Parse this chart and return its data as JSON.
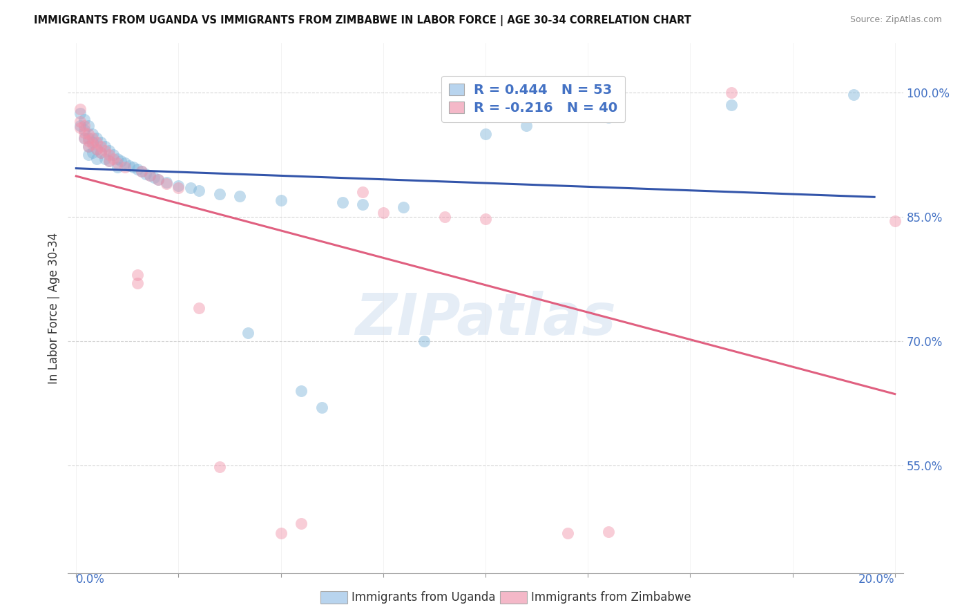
{
  "title": "IMMIGRANTS FROM UGANDA VS IMMIGRANTS FROM ZIMBABWE IN LABOR FORCE | AGE 30-34 CORRELATION CHART",
  "source": "Source: ZipAtlas.com",
  "ylabel": "In Labor Force | Age 30-34",
  "ylim": [
    0.42,
    1.06
  ],
  "xlim": [
    -0.002,
    0.202
  ],
  "y_ticks": [
    0.55,
    0.7,
    0.85,
    1.0
  ],
  "y_tick_labels": [
    "55.0%",
    "70.0%",
    "85.0%",
    "100.0%"
  ],
  "uganda_color": "#7ab3d9",
  "zimbabwe_color": "#f090a8",
  "uganda_line_color": "#3355aa",
  "zimbabwe_line_color": "#e06080",
  "uganda_legend_color": "#b8d4ee",
  "zimbabwe_legend_color": "#f4b8c8",
  "legend_R_uganda": "R = 0.444",
  "legend_N_uganda": "N = 53",
  "legend_R_zimbabwe": "R = -0.216",
  "legend_N_zimbabwe": "N = 40",
  "watermark_text": "ZIPatlas",
  "uganda_points": [
    [
      0.001,
      0.975
    ],
    [
      0.001,
      0.96
    ],
    [
      0.002,
      0.968
    ],
    [
      0.002,
      0.955
    ],
    [
      0.002,
      0.945
    ],
    [
      0.003,
      0.96
    ],
    [
      0.003,
      0.945
    ],
    [
      0.003,
      0.935
    ],
    [
      0.003,
      0.925
    ],
    [
      0.004,
      0.95
    ],
    [
      0.004,
      0.94
    ],
    [
      0.004,
      0.928
    ],
    [
      0.005,
      0.945
    ],
    [
      0.005,
      0.932
    ],
    [
      0.005,
      0.92
    ],
    [
      0.006,
      0.94
    ],
    [
      0.006,
      0.928
    ],
    [
      0.007,
      0.935
    ],
    [
      0.007,
      0.92
    ],
    [
      0.008,
      0.93
    ],
    [
      0.008,
      0.918
    ],
    [
      0.009,
      0.925
    ],
    [
      0.01,
      0.92
    ],
    [
      0.01,
      0.91
    ],
    [
      0.011,
      0.918
    ],
    [
      0.012,
      0.915
    ],
    [
      0.013,
      0.912
    ],
    [
      0.014,
      0.91
    ],
    [
      0.015,
      0.908
    ],
    [
      0.016,
      0.905
    ],
    [
      0.017,
      0.902
    ],
    [
      0.018,
      0.9
    ],
    [
      0.019,
      0.898
    ],
    [
      0.02,
      0.895
    ],
    [
      0.022,
      0.892
    ],
    [
      0.025,
      0.888
    ],
    [
      0.028,
      0.885
    ],
    [
      0.03,
      0.882
    ],
    [
      0.035,
      0.878
    ],
    [
      0.04,
      0.875
    ],
    [
      0.042,
      0.71
    ],
    [
      0.05,
      0.87
    ],
    [
      0.055,
      0.64
    ],
    [
      0.06,
      0.62
    ],
    [
      0.065,
      0.868
    ],
    [
      0.07,
      0.865
    ],
    [
      0.08,
      0.862
    ],
    [
      0.085,
      0.7
    ],
    [
      0.1,
      0.95
    ],
    [
      0.11,
      0.96
    ],
    [
      0.13,
      0.97
    ],
    [
      0.16,
      0.985
    ],
    [
      0.19,
      0.998
    ]
  ],
  "zimbabwe_points": [
    [
      0.001,
      0.98
    ],
    [
      0.001,
      0.965
    ],
    [
      0.001,
      0.958
    ],
    [
      0.002,
      0.96
    ],
    [
      0.002,
      0.952
    ],
    [
      0.002,
      0.945
    ],
    [
      0.003,
      0.95
    ],
    [
      0.003,
      0.942
    ],
    [
      0.003,
      0.935
    ],
    [
      0.004,
      0.945
    ],
    [
      0.004,
      0.938
    ],
    [
      0.005,
      0.94
    ],
    [
      0.005,
      0.932
    ],
    [
      0.006,
      0.935
    ],
    [
      0.006,
      0.928
    ],
    [
      0.007,
      0.93
    ],
    [
      0.008,
      0.925
    ],
    [
      0.008,
      0.918
    ],
    [
      0.009,
      0.92
    ],
    [
      0.01,
      0.915
    ],
    [
      0.012,
      0.91
    ],
    [
      0.015,
      0.78
    ],
    [
      0.015,
      0.77
    ],
    [
      0.016,
      0.905
    ],
    [
      0.018,
      0.9
    ],
    [
      0.02,
      0.895
    ],
    [
      0.022,
      0.89
    ],
    [
      0.025,
      0.885
    ],
    [
      0.03,
      0.74
    ],
    [
      0.035,
      0.548
    ],
    [
      0.05,
      0.468
    ],
    [
      0.055,
      0.48
    ],
    [
      0.07,
      0.88
    ],
    [
      0.075,
      0.855
    ],
    [
      0.09,
      0.85
    ],
    [
      0.1,
      0.848
    ],
    [
      0.12,
      0.468
    ],
    [
      0.13,
      0.47
    ],
    [
      0.16,
      1.0
    ],
    [
      0.2,
      0.845
    ]
  ]
}
